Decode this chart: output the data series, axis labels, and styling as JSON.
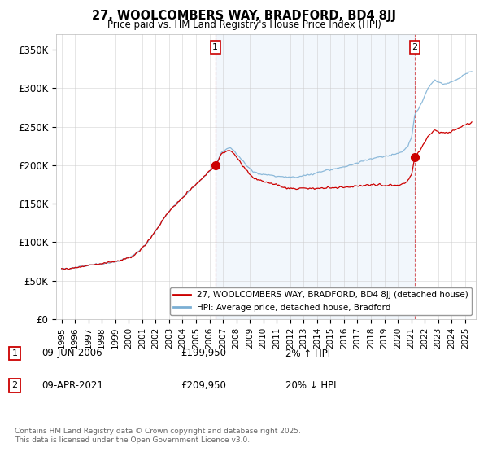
{
  "title": "27, WOOLCOMBERS WAY, BRADFORD, BD4 8JJ",
  "subtitle": "Price paid vs. HM Land Registry's House Price Index (HPI)",
  "ylabel_ticks": [
    "£0",
    "£50K",
    "£100K",
    "£150K",
    "£200K",
    "£250K",
    "£300K",
    "£350K"
  ],
  "ytick_values": [
    0,
    50000,
    100000,
    150000,
    200000,
    250000,
    300000,
    350000
  ],
  "ylim": [
    0,
    370000
  ],
  "xlim_year_start": 1994.6,
  "xlim_year_end": 2025.8,
  "xtick_years": [
    1995,
    1996,
    1997,
    1998,
    1999,
    2000,
    2001,
    2002,
    2003,
    2004,
    2005,
    2006,
    2007,
    2008,
    2009,
    2010,
    2011,
    2012,
    2013,
    2014,
    2015,
    2016,
    2017,
    2018,
    2019,
    2020,
    2021,
    2022,
    2023,
    2024,
    2025
  ],
  "sale1_year": 2006.44,
  "sale1_price": 199950,
  "sale2_year": 2021.27,
  "sale2_price": 209950,
  "line_color_property": "#cc0000",
  "line_color_hpi": "#7bafd4",
  "shade_color": "#ddeeff",
  "legend_label_property": "27, WOOLCOMBERS WAY, BRADFORD, BD4 8JJ (detached house)",
  "legend_label_hpi": "HPI: Average price, detached house, Bradford",
  "footer_line1": "Contains HM Land Registry data © Crown copyright and database right 2025.",
  "footer_line2": "This data is licensed under the Open Government Licence v3.0.",
  "table_row1": [
    "1",
    "09-JUN-2006",
    "£199,950",
    "2% ↑ HPI"
  ],
  "table_row2": [
    "2",
    "09-APR-2021",
    "£209,950",
    "20% ↓ HPI"
  ],
  "background_color": "#ffffff",
  "grid_color": "#cccccc"
}
